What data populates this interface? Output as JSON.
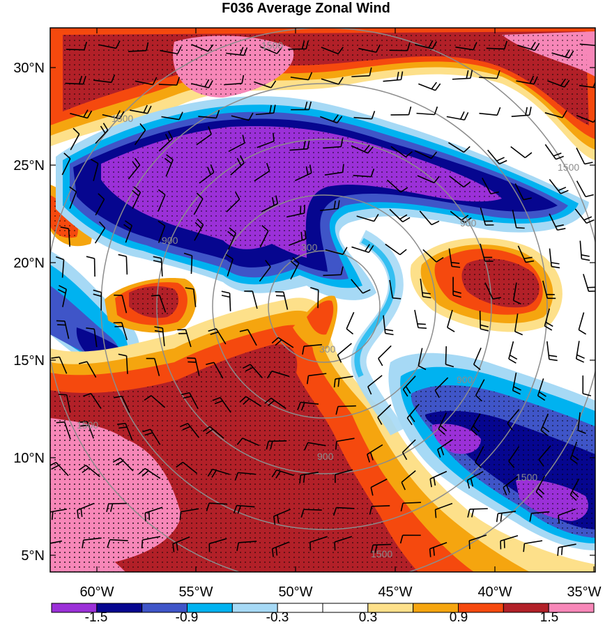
{
  "title": "F036 Average Zonal Wind",
  "x_ticks": [
    "60°W",
    "55°W",
    "50°W",
    "45°W",
    "40°W",
    "35°W"
  ],
  "y_ticks": [
    "30°N",
    "25°N",
    "20°N",
    "15°N",
    "10°N",
    "5°N"
  ],
  "colorbar": {
    "labels": [
      "-1.5",
      "-0.9",
      "-0.3",
      "0.3",
      "0.9",
      "1.5"
    ],
    "colors": [
      "#9b30d8",
      "#06068f",
      "#3f55c8",
      "#00b2f0",
      "#a6d9f5",
      "#ffffff",
      "#ffffff",
      "#fde08a",
      "#f5a50f",
      "#f5490e",
      "#b22028",
      "#f787b8"
    ]
  },
  "contour_labels": [
    "300",
    "300",
    "900",
    "900",
    "900",
    "900",
    "1500",
    "1500",
    "1500",
    "1500",
    "1500",
    "1500"
  ],
  "colors": {
    "purple": "#9b30d8",
    "navy": "#06068f",
    "blue": "#3f55c8",
    "cyan": "#00b2f0",
    "lightblue": "#a6d9f5",
    "white": "#ffffff",
    "yellow": "#fde08a",
    "orange": "#f5a50f",
    "redorange": "#f5490e",
    "darkred": "#b22028",
    "pink": "#f787b8",
    "contour": "#8c8c8c"
  }
}
